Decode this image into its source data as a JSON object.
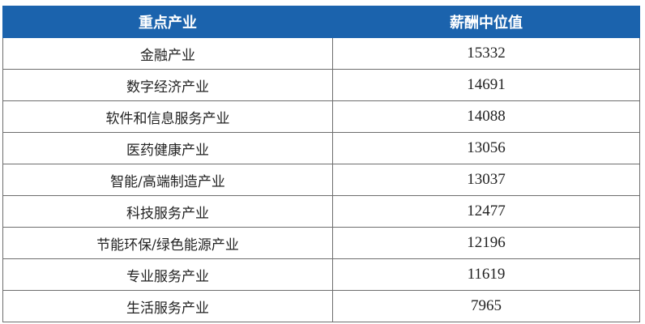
{
  "table": {
    "headers": [
      "重点产业",
      "薪酬中位值"
    ],
    "header_color": "#1b63ad",
    "rows": [
      {
        "industry": "金融产业",
        "median_salary": "15332"
      },
      {
        "industry": "数字经济产业",
        "median_salary": "14691"
      },
      {
        "industry": "软件和信息服务产业",
        "median_salary": "14088"
      },
      {
        "industry": "医药健康产业",
        "median_salary": "13056"
      },
      {
        "industry": "智能/高端制造产业",
        "median_salary": "13037"
      },
      {
        "industry": "科技服务产业",
        "median_salary": "12477"
      },
      {
        "industry": "节能环保/绿色能源产业",
        "median_salary": "12196"
      },
      {
        "industry": "专业服务产业",
        "median_salary": "11619"
      },
      {
        "industry": "生活服务产业",
        "median_salary": "7965"
      }
    ]
  }
}
